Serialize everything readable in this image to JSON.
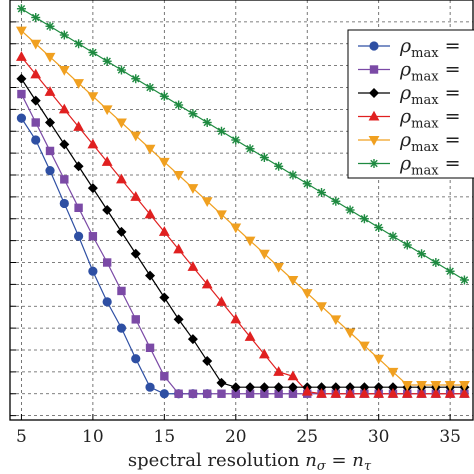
{
  "chart_data": {
    "type": "line",
    "xlabel": "spectral resolution nσ = nτ",
    "xlabel_parts": {
      "text": "spectral resolution ",
      "var1": "n",
      "sub1": "σ",
      "eq": " = ",
      "var2": "n",
      "sub2": "τ"
    },
    "xlim": [
      4.2,
      36.6
    ],
    "xticks": [
      5,
      10,
      15,
      20,
      25,
      30,
      35
    ],
    "xtick_labels": [
      "5",
      "10",
      "15",
      "20",
      "25",
      "30",
      "35"
    ],
    "ylim": [
      -19.2,
      0
    ],
    "yscale": "log10",
    "y_tick_labels_cropped": true,
    "grid": true,
    "grid_style": "dashed",
    "legend_position": "top-right",
    "legend_label_prefix": "ρ",
    "legend_label_sub": "max",
    "legend_label_suffix": " =",
    "series": [
      {
        "marker": "circle",
        "color": "#2e4fa3",
        "x": [
          5,
          6,
          7,
          8,
          9,
          10,
          11,
          12,
          13,
          14,
          15,
          16,
          17,
          18
        ],
        "y": [
          -5.4,
          -6.4,
          -7.8,
          -9.3,
          -10.8,
          -12.4,
          -13.8,
          -15.0,
          -16.4,
          -17.7,
          -18.0,
          -18.0,
          -18.0,
          -18.0
        ]
      },
      {
        "marker": "square",
        "color": "#7b4aa6",
        "x": [
          5,
          6,
          7,
          8,
          9,
          10,
          11,
          12,
          13,
          14,
          15,
          16,
          17,
          18,
          19,
          20,
          21,
          22,
          23,
          24,
          25,
          26,
          27,
          28,
          29,
          30,
          31,
          32,
          33,
          34,
          35,
          36
        ],
        "y": [
          -4.3,
          -5.6,
          -6.9,
          -8.2,
          -9.5,
          -10.8,
          -12.0,
          -13.3,
          -14.6,
          -15.9,
          -17.2,
          -18.0,
          -18.0,
          -18.0,
          -18.0,
          -18.0,
          -18.0,
          -18.0,
          -18.0,
          -18.0,
          -18.0,
          -18.0,
          -18.0,
          -18.0,
          -18.0,
          -18.0,
          -18.0,
          -18.0,
          -18.0,
          -18.0,
          -18.0,
          -18.0
        ]
      },
      {
        "marker": "diamond",
        "color": "#000000",
        "x": [
          5,
          6,
          7,
          8,
          9,
          10,
          11,
          12,
          13,
          14,
          15,
          16,
          17,
          18,
          19,
          20,
          21,
          22,
          23,
          24,
          25,
          26,
          27,
          28,
          29,
          30,
          31,
          32,
          33,
          34,
          35,
          36
        ],
        "y": [
          -3.6,
          -4.6,
          -5.6,
          -6.6,
          -7.6,
          -8.6,
          -9.6,
          -10.6,
          -11.6,
          -12.6,
          -13.6,
          -14.6,
          -15.5,
          -16.5,
          -17.5,
          -17.7,
          -17.7,
          -17.7,
          -17.7,
          -17.7,
          -17.7,
          -17.7,
          -17.7,
          -17.7,
          -17.7,
          -17.7,
          -17.7,
          -17.7,
          -17.7,
          -17.7,
          -17.7,
          -17.7
        ]
      },
      {
        "marker": "triangle-up",
        "color": "#e02020",
        "x": [
          5,
          6,
          7,
          8,
          9,
          10,
          11,
          12,
          13,
          14,
          15,
          16,
          17,
          18,
          19,
          20,
          21,
          22,
          23,
          24,
          25,
          26,
          27,
          28,
          29,
          30,
          31,
          32,
          33,
          34,
          35,
          36
        ],
        "y": [
          -2.6,
          -3.4,
          -4.2,
          -5.0,
          -5.8,
          -6.6,
          -7.4,
          -8.2,
          -9.0,
          -9.8,
          -10.6,
          -11.4,
          -12.2,
          -13.0,
          -13.8,
          -14.6,
          -15.4,
          -16.2,
          -17.0,
          -17.2,
          -17.9,
          -18.0,
          -18.0,
          -18.0,
          -18.0,
          -18.0,
          -18.0,
          -18.0,
          -18.0,
          -18.0,
          -18.0,
          -18.0
        ]
      },
      {
        "marker": "triangle-down",
        "color": "#f0a020",
        "x": [
          5,
          6,
          7,
          8,
          9,
          10,
          11,
          12,
          13,
          14,
          15,
          16,
          17,
          18,
          19,
          20,
          21,
          22,
          23,
          24,
          25,
          26,
          27,
          28,
          29,
          30,
          31,
          32,
          33,
          34,
          35,
          36
        ],
        "y": [
          -1.4,
          -2.0,
          -2.6,
          -3.2,
          -3.8,
          -4.4,
          -5.0,
          -5.6,
          -6.2,
          -6.8,
          -7.4,
          -8.0,
          -8.6,
          -9.2,
          -9.8,
          -10.4,
          -11.0,
          -11.6,
          -12.2,
          -12.8,
          -13.4,
          -14.0,
          -14.6,
          -15.2,
          -15.8,
          -16.4,
          -17.0,
          -17.6,
          -17.6,
          -17.6,
          -17.6,
          -17.6
        ]
      },
      {
        "marker": "asterisk",
        "color": "#1e8a40",
        "x": [
          5,
          6,
          7,
          8,
          9,
          10,
          11,
          12,
          13,
          14,
          15,
          16,
          17,
          18,
          19,
          20,
          21,
          22,
          23,
          24,
          25,
          26,
          27,
          28,
          29,
          30,
          31,
          32,
          33,
          34,
          35,
          36
        ],
        "y": [
          -0.4,
          -0.8,
          -1.2,
          -1.6,
          -2.0,
          -2.4,
          -2.8,
          -3.2,
          -3.6,
          -4.0,
          -4.4,
          -4.8,
          -5.2,
          -5.6,
          -6.0,
          -6.4,
          -6.8,
          -7.2,
          -7.6,
          -8.0,
          -8.4,
          -8.8,
          -9.2,
          -9.6,
          -10.0,
          -10.4,
          -10.8,
          -11.2,
          -11.6,
          -12.0,
          -12.4,
          -12.8
        ]
      }
    ]
  }
}
